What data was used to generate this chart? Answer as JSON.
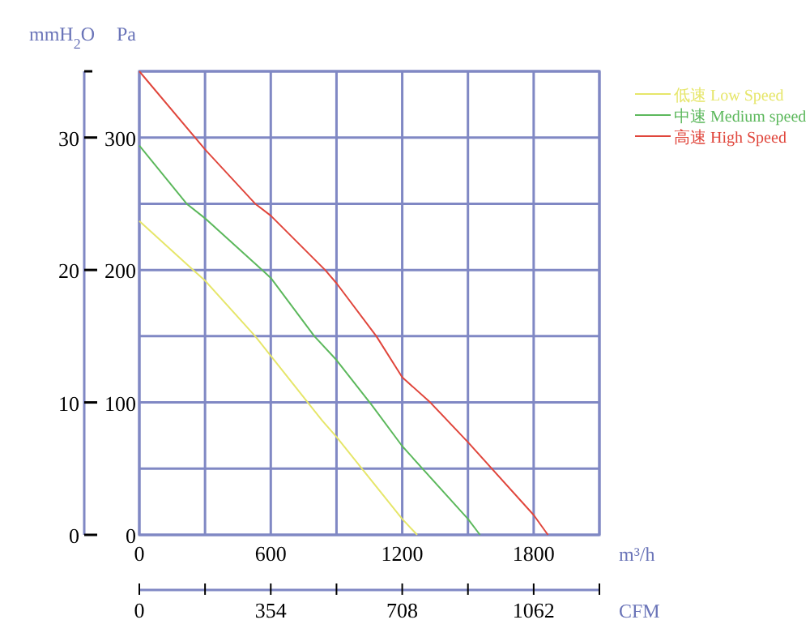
{
  "chart_data": {
    "type": "line",
    "xlabel": "m³/h",
    "ylabel": "Pa",
    "y2label": "mmH$_{2}$O",
    "x2label": "CFM",
    "xlim": [
      0,
      2100
    ],
    "xticks": [
      0,
      {
        "value": 300,
        "label": null
      },
      600,
      {
        "value": 900,
        "label": null
      },
      1200,
      {
        "value": 1500,
        "label": null
      },
      1800,
      {
        "value": 2100,
        "label": null
      }
    ],
    "x2lim": [
      0,
      1239
    ],
    "x2ticks": [
      0,
      {
        "value": 177,
        "label": null
      },
      354,
      {
        "value": 531,
        "label": null
      },
      708,
      {
        "value": 885,
        "label": null
      },
      1062,
      {
        "value": 1239,
        "label": null
      }
    ],
    "ylim": [
      0,
      350
    ],
    "yticks": [
      0,
      {
        "value": 50,
        "label": null
      },
      100,
      {
        "value": 150,
        "label": null
      },
      200,
      {
        "value": 250,
        "label": null
      },
      300,
      {
        "value": 350,
        "label": null
      }
    ],
    "y2lim": [
      0,
      35
    ],
    "y2ticks": [
      0,
      10,
      20,
      30,
      {
        "value": 35,
        "label": null
      }
    ],
    "grid": true,
    "legend": "top right",
    "marker": "none",
    "line_style": "solid",
    "series": [
      {
        "name": "低速 Low Speed",
        "color": "#e6e66a",
        "x": [
          0,
          246,
          300,
          529,
          836,
          900,
          1200,
          1268
        ],
        "values": [
          237,
          200,
          192,
          150,
          86,
          74,
          12,
          0
        ]
      },
      {
        "name": "中速 Medium speed",
        "color": "#5cb85c",
        "x": [
          0,
          216,
          300,
          561,
          600,
          799,
          900,
          1061,
          1200,
          1500,
          1555
        ],
        "values": [
          294,
          250,
          239,
          200,
          194,
          150,
          132,
          98,
          67,
          12,
          0
        ]
      },
      {
        "name": "高速 High Speed",
        "color": "#e0463c",
        "x": [
          0,
          300,
          529,
          600,
          848,
          900,
          1082,
          1200,
          1328,
          1500,
          1800,
          1865
        ],
        "values": [
          350,
          291,
          250,
          241,
          200,
          190,
          150,
          119,
          100,
          70,
          15,
          0
        ]
      }
    ]
  }
}
